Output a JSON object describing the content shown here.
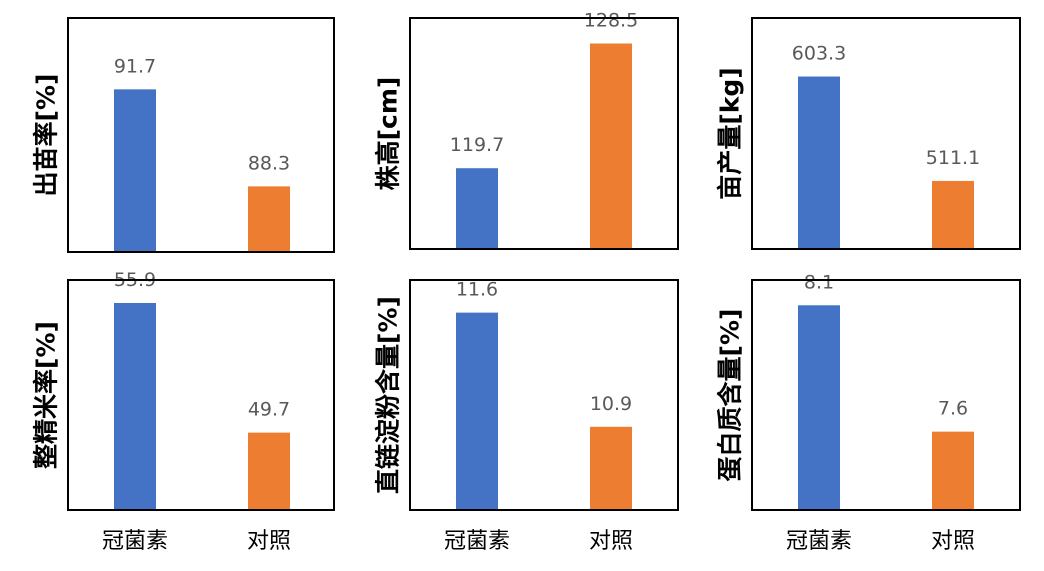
{
  "chart_data": [
    {
      "type": "bar",
      "ylabel": "出苗率[%]",
      "categories": [
        "冠菌素",
        "对照"
      ],
      "values": [
        91.7,
        88.3
      ],
      "colors": [
        "#4472C4",
        "#ED7D31"
      ],
      "ylim": [
        86,
        94.2
      ],
      "grid": false,
      "show_category_labels": false
    },
    {
      "type": "bar",
      "ylabel": "株高[cm]",
      "categories": [
        "冠菌素",
        "对照"
      ],
      "values": [
        119.7,
        128.5
      ],
      "colors": [
        "#4472C4",
        "#ED7D31"
      ],
      "ylim": [
        114,
        130.3
      ],
      "grid": false,
      "show_category_labels": false
    },
    {
      "type": "bar",
      "ylabel": "亩产量[kg]",
      "categories": [
        "冠菌素",
        "对照"
      ],
      "values": [
        603.3,
        511.1
      ],
      "colors": [
        "#4472C4",
        "#ED7D31"
      ],
      "ylim": [
        451,
        655
      ],
      "grid": false,
      "show_category_labels": false
    },
    {
      "type": "bar",
      "ylabel": "整精米率[%]",
      "categories": [
        "冠菌素",
        "对照"
      ],
      "values": [
        55.9,
        49.7
      ],
      "colors": [
        "#4472C4",
        "#ED7D31"
      ],
      "ylim": [
        46,
        57
      ],
      "grid": false,
      "show_category_labels": true
    },
    {
      "type": "bar",
      "ylabel": "直链淀粉含量[%]",
      "categories": [
        "冠菌素",
        "对照"
      ],
      "values": [
        11.6,
        10.9
      ],
      "colors": [
        "#4472C4",
        "#ED7D31"
      ],
      "ylim": [
        10.39,
        11.8
      ],
      "grid": false,
      "show_category_labels": true
    },
    {
      "type": "bar",
      "ylabel": "蛋白质含量[%]",
      "categories": [
        "冠菌素",
        "对照"
      ],
      "values": [
        8.1,
        7.6
      ],
      "colors": [
        "#4472C4",
        "#ED7D31"
      ],
      "ylim": [
        7.29,
        8.2
      ],
      "grid": false,
      "show_category_labels": true
    }
  ]
}
